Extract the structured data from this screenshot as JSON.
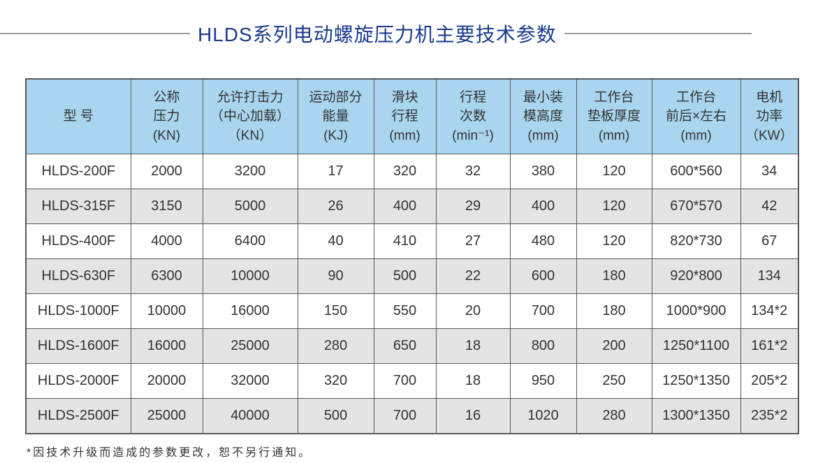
{
  "title": "HLDS系列电动螺旋压力机主要技术参数",
  "colors": {
    "title_text": "#1a3a8e",
    "header_bg": "#a9d6ee",
    "row_alt_bg": "#e4e4e4",
    "table_border": "#58585a",
    "body_text": "#333333",
    "title_divider": "#9c9c9c"
  },
  "table": {
    "columns": [
      {
        "label": "型 号"
      },
      {
        "label": "公称\n压力\n(KN)"
      },
      {
        "label": "允许打击力\n（中心加载）\n（KN）"
      },
      {
        "label": "运动部分\n能量\n(KJ)"
      },
      {
        "label": "滑块\n行程\n(mm)"
      },
      {
        "label": "行程\n次数\n(min⁻¹)"
      },
      {
        "label": "最小装\n模高度\n(mm)"
      },
      {
        "label": "工作台\n垫板厚度\n(mm)"
      },
      {
        "label": "工作台\n前后×左右\n(mm)"
      },
      {
        "label": "电机\n功率\n（KW）"
      }
    ],
    "rows": [
      [
        "HLDS-200F",
        "2000",
        "3200",
        "17",
        "320",
        "32",
        "380",
        "120",
        "600*560",
        "34"
      ],
      [
        "HLDS-315F",
        "3150",
        "5000",
        "26",
        "400",
        "29",
        "400",
        "120",
        "670*570",
        "42"
      ],
      [
        "HLDS-400F",
        "4000",
        "6400",
        "40",
        "410",
        "27",
        "480",
        "120",
        "820*730",
        "67"
      ],
      [
        "HLDS-630F",
        "6300",
        "10000",
        "90",
        "500",
        "22",
        "600",
        "180",
        "920*800",
        "134"
      ],
      [
        "HLDS-1000F",
        "10000",
        "16000",
        "150",
        "550",
        "20",
        "700",
        "180",
        "1000*900",
        "134*2"
      ],
      [
        "HLDS-1600F",
        "16000",
        "25000",
        "280",
        "650",
        "18",
        "800",
        "200",
        "1250*1100",
        "161*2"
      ],
      [
        "HLDS-2000F",
        "20000",
        "32000",
        "320",
        "700",
        "18",
        "950",
        "250",
        "1250*1350",
        "205*2"
      ],
      [
        "HLDS-2500F",
        "25000",
        "40000",
        "500",
        "700",
        "16",
        "1020",
        "280",
        "1300*1350",
        "235*2"
      ]
    ]
  },
  "footnote": "*因技术升级而造成的参数更改，恕不另行通知。"
}
